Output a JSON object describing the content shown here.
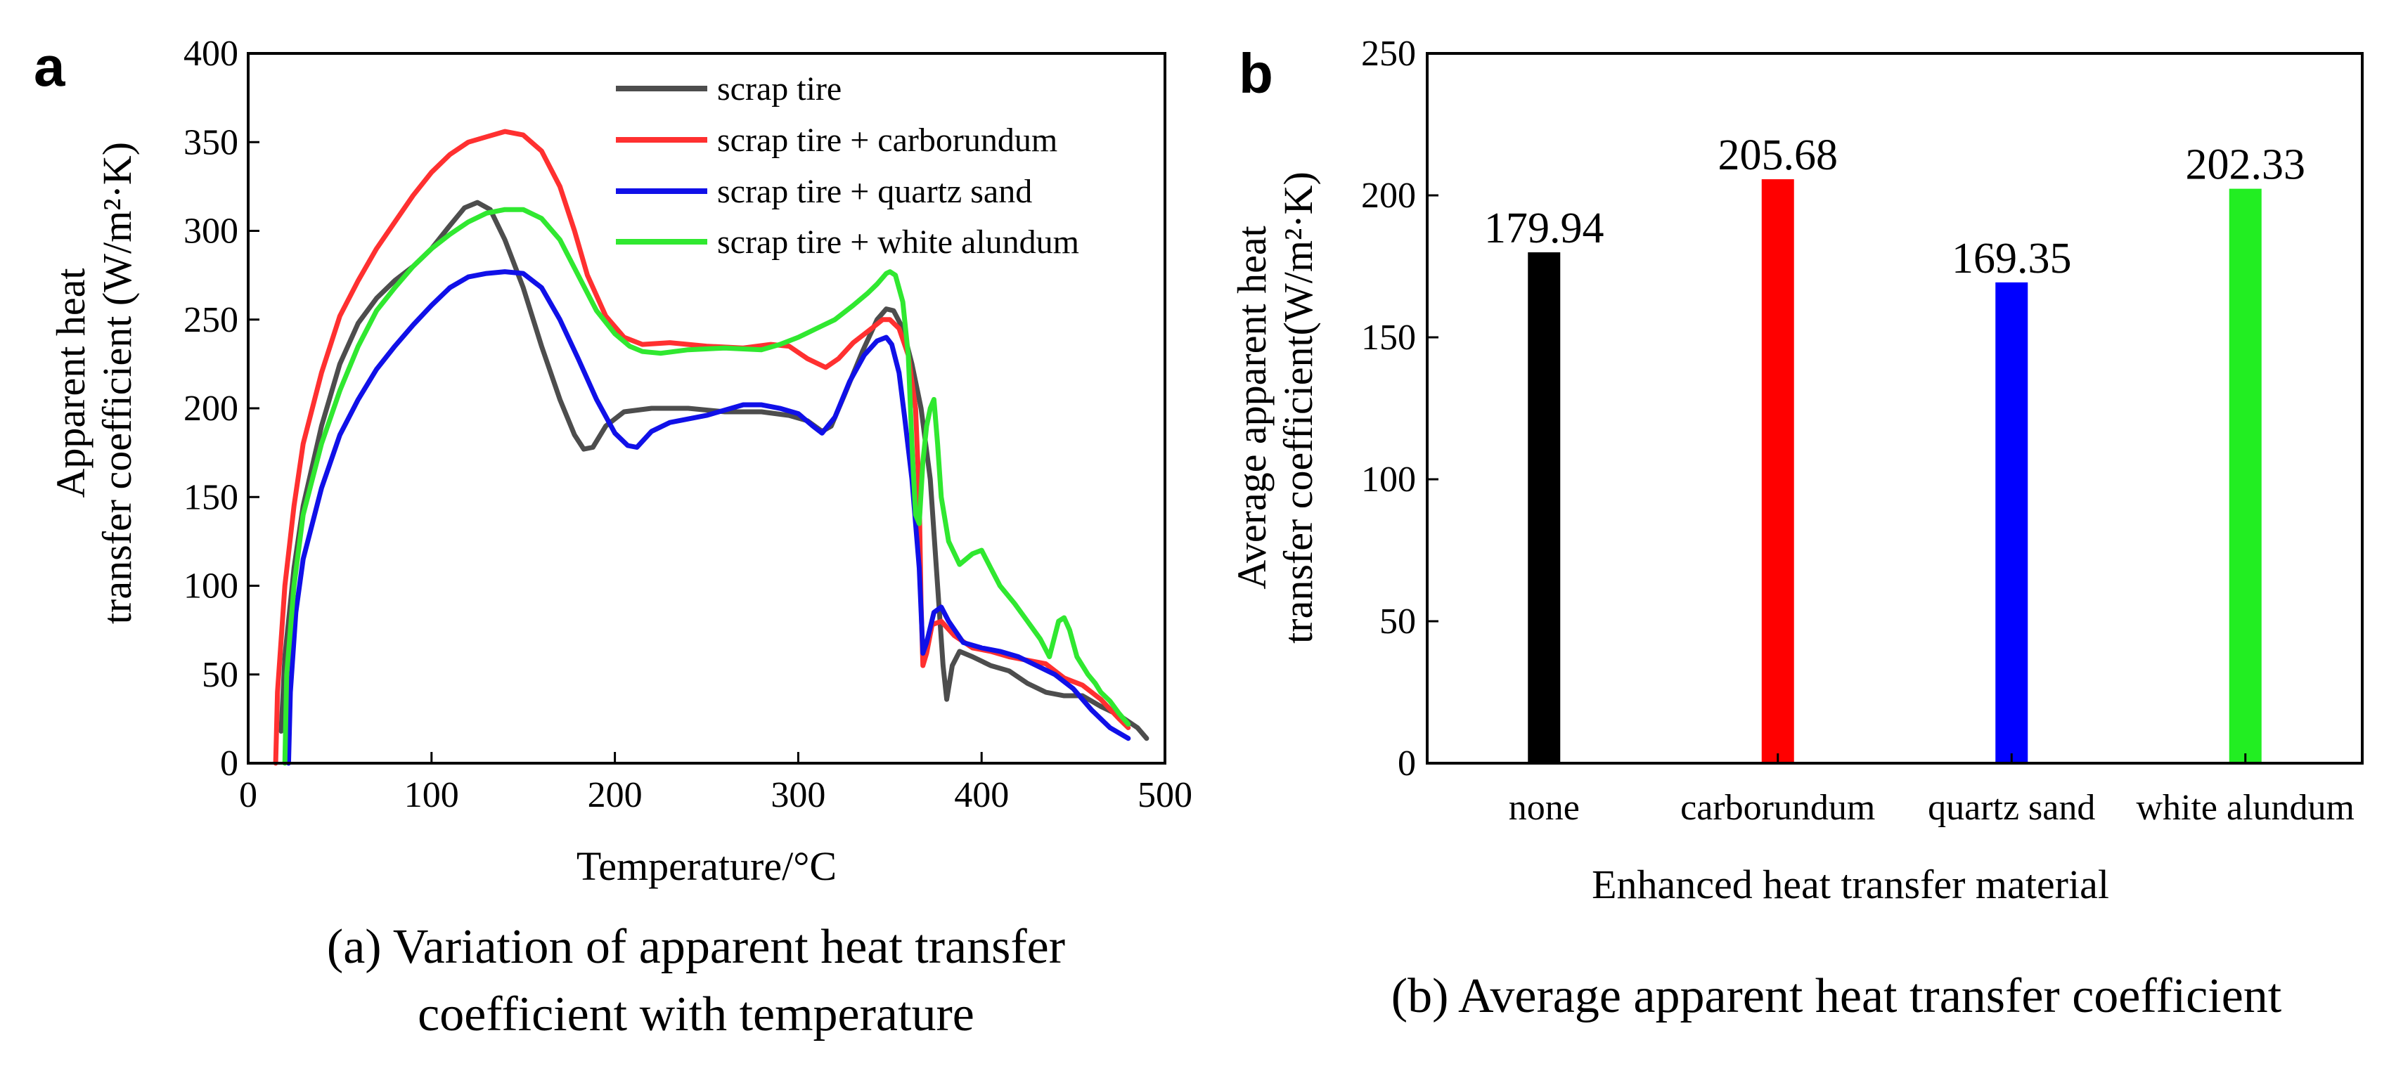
{
  "panels": {
    "a": {
      "letter": "a",
      "caption_lines": [
        "(a) Variation of apparent heat transfer",
        "coefficient with temperature"
      ]
    },
    "b": {
      "letter": "b",
      "caption_lines": [
        "(b) Average apparent heat transfer coefficient"
      ]
    }
  },
  "chart_data": [
    {
      "type": "line",
      "panel": "a",
      "title": "",
      "xlabel": "Temperature/°C",
      "ylabel_lines": [
        "Apparent heat",
        "transfer coefficient (W/m²·K)"
      ],
      "xlim": [
        0,
        500
      ],
      "ylim": [
        0,
        400
      ],
      "xticks": [
        0,
        100,
        200,
        300,
        400,
        500
      ],
      "yticks": [
        0,
        50,
        100,
        150,
        200,
        250,
        300,
        350,
        400
      ],
      "grid": false,
      "legend_position": "top-right",
      "series": [
        {
          "name": "scrap tire",
          "color": "#4d4d4d",
          "points": [
            [
              18,
              18
            ],
            [
              20,
              60
            ],
            [
              25,
              110
            ],
            [
              30,
              145
            ],
            [
              40,
              190
            ],
            [
              50,
              225
            ],
            [
              60,
              248
            ],
            [
              70,
              262
            ],
            [
              80,
              272
            ],
            [
              90,
              280
            ],
            [
              100,
              290
            ],
            [
              110,
              303
            ],
            [
              118,
              313
            ],
            [
              125,
              316
            ],
            [
              132,
              312
            ],
            [
              140,
              295
            ],
            [
              150,
              268
            ],
            [
              160,
              235
            ],
            [
              170,
              205
            ],
            [
              178,
              185
            ],
            [
              183,
              177
            ],
            [
              188,
              178
            ],
            [
              195,
              190
            ],
            [
              205,
              198
            ],
            [
              220,
              200
            ],
            [
              240,
              200
            ],
            [
              260,
              198
            ],
            [
              280,
              198
            ],
            [
              295,
              196
            ],
            [
              305,
              193
            ],
            [
              313,
              187
            ],
            [
              318,
              190
            ],
            [
              325,
              207
            ],
            [
              335,
              232
            ],
            [
              343,
              250
            ],
            [
              348,
              256
            ],
            [
              352,
              255
            ],
            [
              357,
              245
            ],
            [
              362,
              225
            ],
            [
              367,
              200
            ],
            [
              372,
              160
            ],
            [
              376,
              100
            ],
            [
              379,
              55
            ],
            [
              381,
              36
            ],
            [
              384,
              55
            ],
            [
              388,
              63
            ],
            [
              395,
              60
            ],
            [
              405,
              55
            ],
            [
              415,
              52
            ],
            [
              425,
              45
            ],
            [
              435,
              40
            ],
            [
              445,
              38
            ],
            [
              455,
              38
            ],
            [
              465,
              32
            ],
            [
              475,
              27
            ],
            [
              485,
              20
            ],
            [
              490,
              14
            ]
          ]
        },
        {
          "name": "scrap tire + carborundum",
          "color": "#ff3030",
          "points": [
            [
              15,
              0
            ],
            [
              16,
              40
            ],
            [
              20,
              100
            ],
            [
              25,
              145
            ],
            [
              30,
              180
            ],
            [
              40,
              220
            ],
            [
              50,
              252
            ],
            [
              60,
              272
            ],
            [
              70,
              290
            ],
            [
              80,
              305
            ],
            [
              90,
              320
            ],
            [
              100,
              333
            ],
            [
              110,
              343
            ],
            [
              120,
              350
            ],
            [
              130,
              353
            ],
            [
              140,
              356
            ],
            [
              150,
              354
            ],
            [
              160,
              345
            ],
            [
              170,
              325
            ],
            [
              178,
              300
            ],
            [
              185,
              275
            ],
            [
              195,
              252
            ],
            [
              205,
              240
            ],
            [
              215,
              236
            ],
            [
              230,
              237
            ],
            [
              250,
              235
            ],
            [
              270,
              234
            ],
            [
              285,
              236
            ],
            [
              295,
              235
            ],
            [
              305,
              228
            ],
            [
              315,
              223
            ],
            [
              322,
              228
            ],
            [
              330,
              237
            ],
            [
              340,
              245
            ],
            [
              346,
              250
            ],
            [
              350,
              250
            ],
            [
              355,
              245
            ],
            [
              360,
              230
            ],
            [
              364,
              200
            ],
            [
              366,
              150
            ],
            [
              367,
              90
            ],
            [
              368,
              55
            ],
            [
              370,
              62
            ],
            [
              373,
              78
            ],
            [
              378,
              80
            ],
            [
              385,
              72
            ],
            [
              395,
              65
            ],
            [
              405,
              63
            ],
            [
              415,
              60
            ],
            [
              425,
              58
            ],
            [
              435,
              56
            ],
            [
              445,
              48
            ],
            [
              455,
              44
            ],
            [
              465,
              36
            ],
            [
              475,
              25
            ],
            [
              480,
              20
            ]
          ]
        },
        {
          "name": "scrap tire + quartz sand",
          "color": "#1010e8",
          "points": [
            [
              22,
              0
            ],
            [
              23,
              40
            ],
            [
              26,
              85
            ],
            [
              30,
              115
            ],
            [
              40,
              155
            ],
            [
              50,
              185
            ],
            [
              60,
              205
            ],
            [
              70,
              222
            ],
            [
              80,
              235
            ],
            [
              90,
              247
            ],
            [
              100,
              258
            ],
            [
              110,
              268
            ],
            [
              120,
              274
            ],
            [
              130,
              276
            ],
            [
              140,
              277
            ],
            [
              150,
              276
            ],
            [
              160,
              268
            ],
            [
              170,
              250
            ],
            [
              180,
              228
            ],
            [
              190,
              205
            ],
            [
              200,
              186
            ],
            [
              207,
              179
            ],
            [
              212,
              178
            ],
            [
              220,
              187
            ],
            [
              230,
              192
            ],
            [
              250,
              196
            ],
            [
              270,
              202
            ],
            [
              280,
              202
            ],
            [
              290,
              200
            ],
            [
              300,
              197
            ],
            [
              308,
              190
            ],
            [
              313,
              186
            ],
            [
              320,
              195
            ],
            [
              328,
              215
            ],
            [
              336,
              230
            ],
            [
              343,
              238
            ],
            [
              348,
              240
            ],
            [
              351,
              236
            ],
            [
              355,
              220
            ],
            [
              358,
              195
            ],
            [
              362,
              160
            ],
            [
              366,
              110
            ],
            [
              368,
              62
            ],
            [
              370,
              68
            ],
            [
              374,
              85
            ],
            [
              378,
              88
            ],
            [
              382,
              80
            ],
            [
              390,
              68
            ],
            [
              400,
              65
            ],
            [
              410,
              63
            ],
            [
              420,
              60
            ],
            [
              430,
              55
            ],
            [
              440,
              50
            ],
            [
              450,
              42
            ],
            [
              460,
              30
            ],
            [
              470,
              20
            ],
            [
              480,
              14
            ]
          ]
        },
        {
          "name": "scrap tire + white alundum",
          "color": "#30e830",
          "points": [
            [
              20,
              0
            ],
            [
              21,
              50
            ],
            [
              25,
              100
            ],
            [
              30,
              140
            ],
            [
              40,
              180
            ],
            [
              50,
              210
            ],
            [
              60,
              235
            ],
            [
              70,
              255
            ],
            [
              80,
              268
            ],
            [
              90,
              280
            ],
            [
              100,
              290
            ],
            [
              110,
              298
            ],
            [
              120,
              305
            ],
            [
              130,
              310
            ],
            [
              140,
              312
            ],
            [
              150,
              312
            ],
            [
              160,
              307
            ],
            [
              170,
              295
            ],
            [
              180,
              275
            ],
            [
              190,
              255
            ],
            [
              200,
              242
            ],
            [
              208,
              235
            ],
            [
              215,
              232
            ],
            [
              225,
              231
            ],
            [
              240,
              233
            ],
            [
              260,
              234
            ],
            [
              280,
              233
            ],
            [
              290,
              236
            ],
            [
              300,
              240
            ],
            [
              310,
              245
            ],
            [
              320,
              250
            ],
            [
              330,
              258
            ],
            [
              338,
              265
            ],
            [
              343,
              270
            ],
            [
              348,
              276
            ],
            [
              350,
              277
            ],
            [
              353,
              275
            ],
            [
              357,
              260
            ],
            [
              360,
              230
            ],
            [
              362,
              180
            ],
            [
              364,
              140
            ],
            [
              366,
              135
            ],
            [
              368,
              170
            ],
            [
              370,
              190
            ],
            [
              372,
              200
            ],
            [
              374,
              205
            ],
            [
              376,
              180
            ],
            [
              378,
              150
            ],
            [
              382,
              125
            ],
            [
              388,
              112
            ],
            [
              395,
              118
            ],
            [
              400,
              120
            ],
            [
              405,
              110
            ],
            [
              410,
              100
            ],
            [
              418,
              90
            ],
            [
              425,
              80
            ],
            [
              432,
              70
            ],
            [
              437,
              60
            ],
            [
              442,
              80
            ],
            [
              445,
              82
            ],
            [
              448,
              75
            ],
            [
              452,
              60
            ],
            [
              458,
              50
            ],
            [
              462,
              45
            ],
            [
              465,
              40
            ],
            [
              470,
              35
            ],
            [
              475,
              28
            ],
            [
              480,
              22
            ]
          ]
        }
      ]
    },
    {
      "type": "bar",
      "panel": "b",
      "title": "",
      "xlabel": "Enhanced heat transfer material",
      "ylabel_lines": [
        "Average apparent heat",
        "transfer coefficient(W/m²·K)"
      ],
      "ylim": [
        0,
        250
      ],
      "yticks": [
        0,
        50,
        100,
        150,
        200,
        250
      ],
      "grid": false,
      "categories": [
        "none",
        "carborundum",
        "quartz sand",
        "white alundum"
      ],
      "values": [
        179.94,
        205.68,
        169.35,
        202.33
      ],
      "value_labels": [
        "179.94",
        "205.68",
        "169.35",
        "202.33"
      ],
      "colors": [
        "#000000",
        "#ff0000",
        "#0000ff",
        "#22ee22"
      ]
    }
  ]
}
